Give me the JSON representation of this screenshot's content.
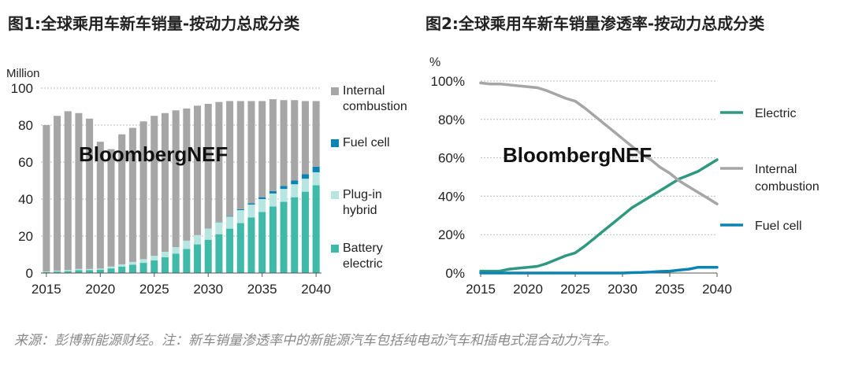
{
  "page": {
    "title_left": "图1:全球乘用车新车销量-按动力总成分类",
    "title_right": "图2:全球乘用车新车销量渗透率-按动力总成分类",
    "watermark": "BloombergNEF",
    "source": "来源：彭博新能源财经。注：新车销量渗透率中的新能源汽车包括纯电动汽车和插电式混合动力汽车。"
  },
  "colors": {
    "internal_combustion": "#a6a6a6",
    "fuel_cell": "#0a83b5",
    "plug_in_hybrid": "#b6e6df",
    "battery_electric": "#3fbaa8",
    "electric_line": "#2e9880",
    "ice_line": "#a6a6a6",
    "fuel_cell_line": "#0a83b5",
    "grid": "#bbbbbb"
  },
  "chart_data": [
    {
      "type": "bar",
      "stacked": true,
      "title": "图1:全球乘用车新车销量-按动力总成分类",
      "ylabel": "Million",
      "ylim": [
        0,
        100
      ],
      "yticks": [
        0,
        20,
        40,
        60,
        80,
        100
      ],
      "xticks": [
        "2015",
        "2020",
        "2025",
        "2030",
        "2035",
        "2040"
      ],
      "grid": true,
      "legend": "right",
      "categories": [
        "2015",
        "2016",
        "2017",
        "2018",
        "2019",
        "2020",
        "2021",
        "2022",
        "2023",
        "2024",
        "2025",
        "2026",
        "2027",
        "2028",
        "2029",
        "2030",
        "2031",
        "2032",
        "2033",
        "2034",
        "2035",
        "2036",
        "2037",
        "2038",
        "2039",
        "2040"
      ],
      "series": [
        {
          "name": "Battery electric",
          "values": [
            0.5,
            0.8,
            1.0,
            1.5,
            1.6,
            1.8,
            2.5,
            3.5,
            4.5,
            5.5,
            6.8,
            8.5,
            10.5,
            13,
            15.5,
            18,
            21,
            24,
            27,
            30,
            33,
            36,
            38.5,
            41,
            44,
            47.5
          ]
        },
        {
          "name": "Plug-in hybrid",
          "values": [
            0.3,
            0.5,
            0.6,
            0.7,
            0.6,
            0.6,
            1.0,
            1.2,
            1.5,
            2.0,
            2.5,
            3.0,
            3.5,
            4.5,
            5.0,
            6.0,
            6.5,
            6.5,
            7.0,
            7.0,
            7.0,
            7.0,
            7.0,
            7.0,
            7.0,
            7.0
          ]
        },
        {
          "name": "Fuel cell",
          "values": [
            0,
            0,
            0,
            0,
            0,
            0,
            0,
            0,
            0,
            0,
            0,
            0,
            0,
            0,
            0,
            0.1,
            0.2,
            0.3,
            0.5,
            0.7,
            1.0,
            1.3,
            1.6,
            2.0,
            2.5,
            3.0
          ]
        },
        {
          "name": "Internal combustion",
          "values": [
            79.2,
            83.7,
            85.9,
            84.3,
            81.3,
            68.6,
            63.5,
            70.3,
            72.5,
            74.5,
            75.7,
            75.0,
            74.0,
            71.5,
            70.0,
            67.4,
            64.8,
            62.2,
            58.5,
            55.3,
            52.0,
            49.7,
            46.4,
            43.5,
            39.5,
            35.5
          ]
        }
      ]
    },
    {
      "type": "line",
      "title": "图2:全球乘用车新车销量渗透率-按动力总成分类",
      "ylabel": "%",
      "ylim": [
        0,
        100
      ],
      "yticks": [
        "0%",
        "20%",
        "40%",
        "60%",
        "80%",
        "100%"
      ],
      "xticks": [
        "2015",
        "2020",
        "2025",
        "2030",
        "2035",
        "2040"
      ],
      "grid": true,
      "legend": "right",
      "x": [
        2015,
        2016,
        2017,
        2018,
        2019,
        2020,
        2021,
        2022,
        2023,
        2024,
        2025,
        2026,
        2027,
        2028,
        2029,
        2030,
        2031,
        2032,
        2033,
        2034,
        2035,
        2036,
        2037,
        2038,
        2039,
        2040
      ],
      "series": [
        {
          "name": "Electric",
          "values": [
            1,
            1,
            1,
            2,
            2.5,
            3,
            3.5,
            5,
            7,
            9,
            10.5,
            14,
            18,
            22,
            26,
            30,
            34,
            37,
            40,
            43,
            46,
            49,
            51,
            53,
            56,
            59
          ]
        },
        {
          "name": "Internal combustion",
          "values": [
            99,
            98.5,
            98.5,
            98,
            97.5,
            97,
            96.5,
            95,
            93,
            91,
            89.5,
            86,
            82,
            78,
            74,
            70,
            66,
            62,
            59,
            55,
            52,
            48,
            45,
            42,
            39,
            36
          ]
        },
        {
          "name": "Fuel cell",
          "values": [
            0,
            0,
            0,
            0,
            0,
            0,
            0,
            0,
            0,
            0,
            0,
            0,
            0,
            0,
            0,
            0,
            0.2,
            0.3,
            0.5,
            0.8,
            1,
            1.5,
            2,
            3,
            3,
            3
          ]
        }
      ]
    }
  ]
}
